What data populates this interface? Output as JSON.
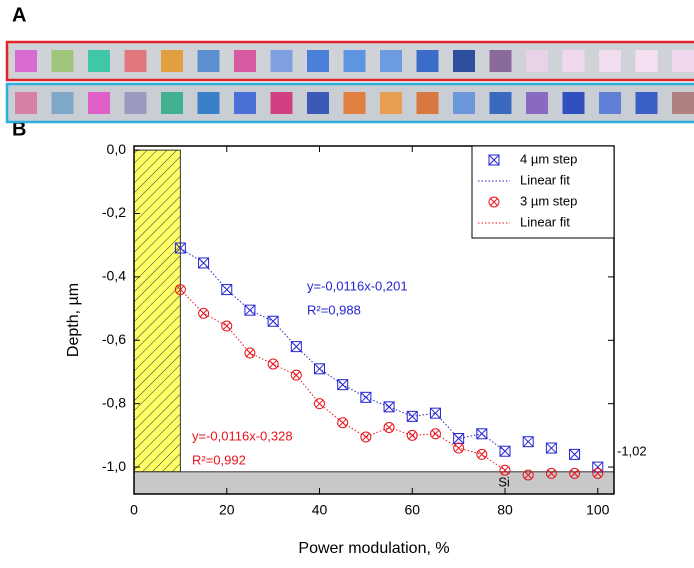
{
  "panel_labels": [
    "A",
    "B"
  ],
  "chart_data": {
    "type": "scatter",
    "xlabel": "Power modulation, %",
    "ylabel": "Depth, µm",
    "xlim": [
      0,
      103.5
    ],
    "ylim": [
      -1.085,
      0.013
    ],
    "xticks": [
      0,
      20,
      40,
      60,
      80,
      100
    ],
    "yticks": [
      {
        "value": 0,
        "label": "0,0"
      },
      {
        "value": -0.2,
        "label": "-0,2"
      },
      {
        "value": -0.4,
        "label": "-0,4"
      },
      {
        "value": -0.6,
        "label": "-0,6"
      },
      {
        "value": -0.8,
        "label": "-0,8"
      },
      {
        "value": -1.0,
        "label": "-1,0"
      }
    ],
    "x": [
      10,
      15,
      20,
      25,
      30,
      35,
      40,
      45,
      50,
      55,
      60,
      65,
      70,
      75,
      80,
      85,
      90,
      95,
      100
    ],
    "series": [
      {
        "name": "4 µm step",
        "color": "#2424d4",
        "marker": "square-x",
        "values": [
          -0.309,
          -0.356,
          -0.44,
          -0.505,
          -0.54,
          -0.62,
          -0.69,
          -0.74,
          -0.78,
          -0.81,
          -0.84,
          -0.83,
          -0.91,
          -0.895,
          -0.95,
          -0.92,
          -0.94,
          -0.96,
          -1.0
        ]
      },
      {
        "name": "Linear fit",
        "color": "#2424d4",
        "line": "dotted",
        "values": [
          -0.309,
          -0.356,
          -0.44,
          -0.505,
          -0.54,
          -0.62,
          -0.69,
          -0.74,
          -0.78,
          -0.81,
          -0.84,
          -0.83,
          -0.91,
          -0.895,
          -0.95,
          null,
          null,
          null,
          null
        ]
      },
      {
        "name": "3 µm step",
        "color": "#e8141c",
        "marker": "circle-x",
        "values": [
          -0.44,
          -0.515,
          -0.555,
          -0.64,
          -0.675,
          -0.71,
          -0.8,
          -0.86,
          -0.905,
          -0.875,
          -0.9,
          -0.895,
          -0.94,
          -0.96,
          -1.01,
          -1.025,
          -1.02,
          -1.02,
          -1.02
        ]
      },
      {
        "name": "Linear fit",
        "color": "#e8141c",
        "line": "dotted",
        "values": [
          -0.44,
          -0.515,
          -0.555,
          -0.64,
          -0.675,
          -0.71,
          -0.8,
          -0.86,
          -0.905,
          -0.875,
          -0.9,
          -0.895,
          -0.94,
          -0.96,
          -1.01,
          null,
          null,
          null,
          null
        ]
      }
    ],
    "regions": [
      {
        "x": [
          0,
          10
        ],
        "y": [
          -1.015,
          0
        ],
        "color": "#ffff66",
        "hatch": true
      },
      {
        "label": "Si",
        "x": [
          0,
          103.5
        ],
        "y": [
          -1.085,
          -1.015
        ],
        "color": "#c8c8c8"
      }
    ],
    "annotations": [
      {
        "text": "y=-0,0116x-0,201",
        "color": "#2424d4"
      },
      {
        "text": "R²=0,988",
        "color": "#2424d4"
      },
      {
        "text": "y=-0,0116x-0,328",
        "color": "#e8141c"
      },
      {
        "text": "R²=0,992",
        "color": "#e8141c"
      },
      {
        "text": "-1,02",
        "color": "#000000"
      }
    ],
    "legend": "upper right"
  }
}
